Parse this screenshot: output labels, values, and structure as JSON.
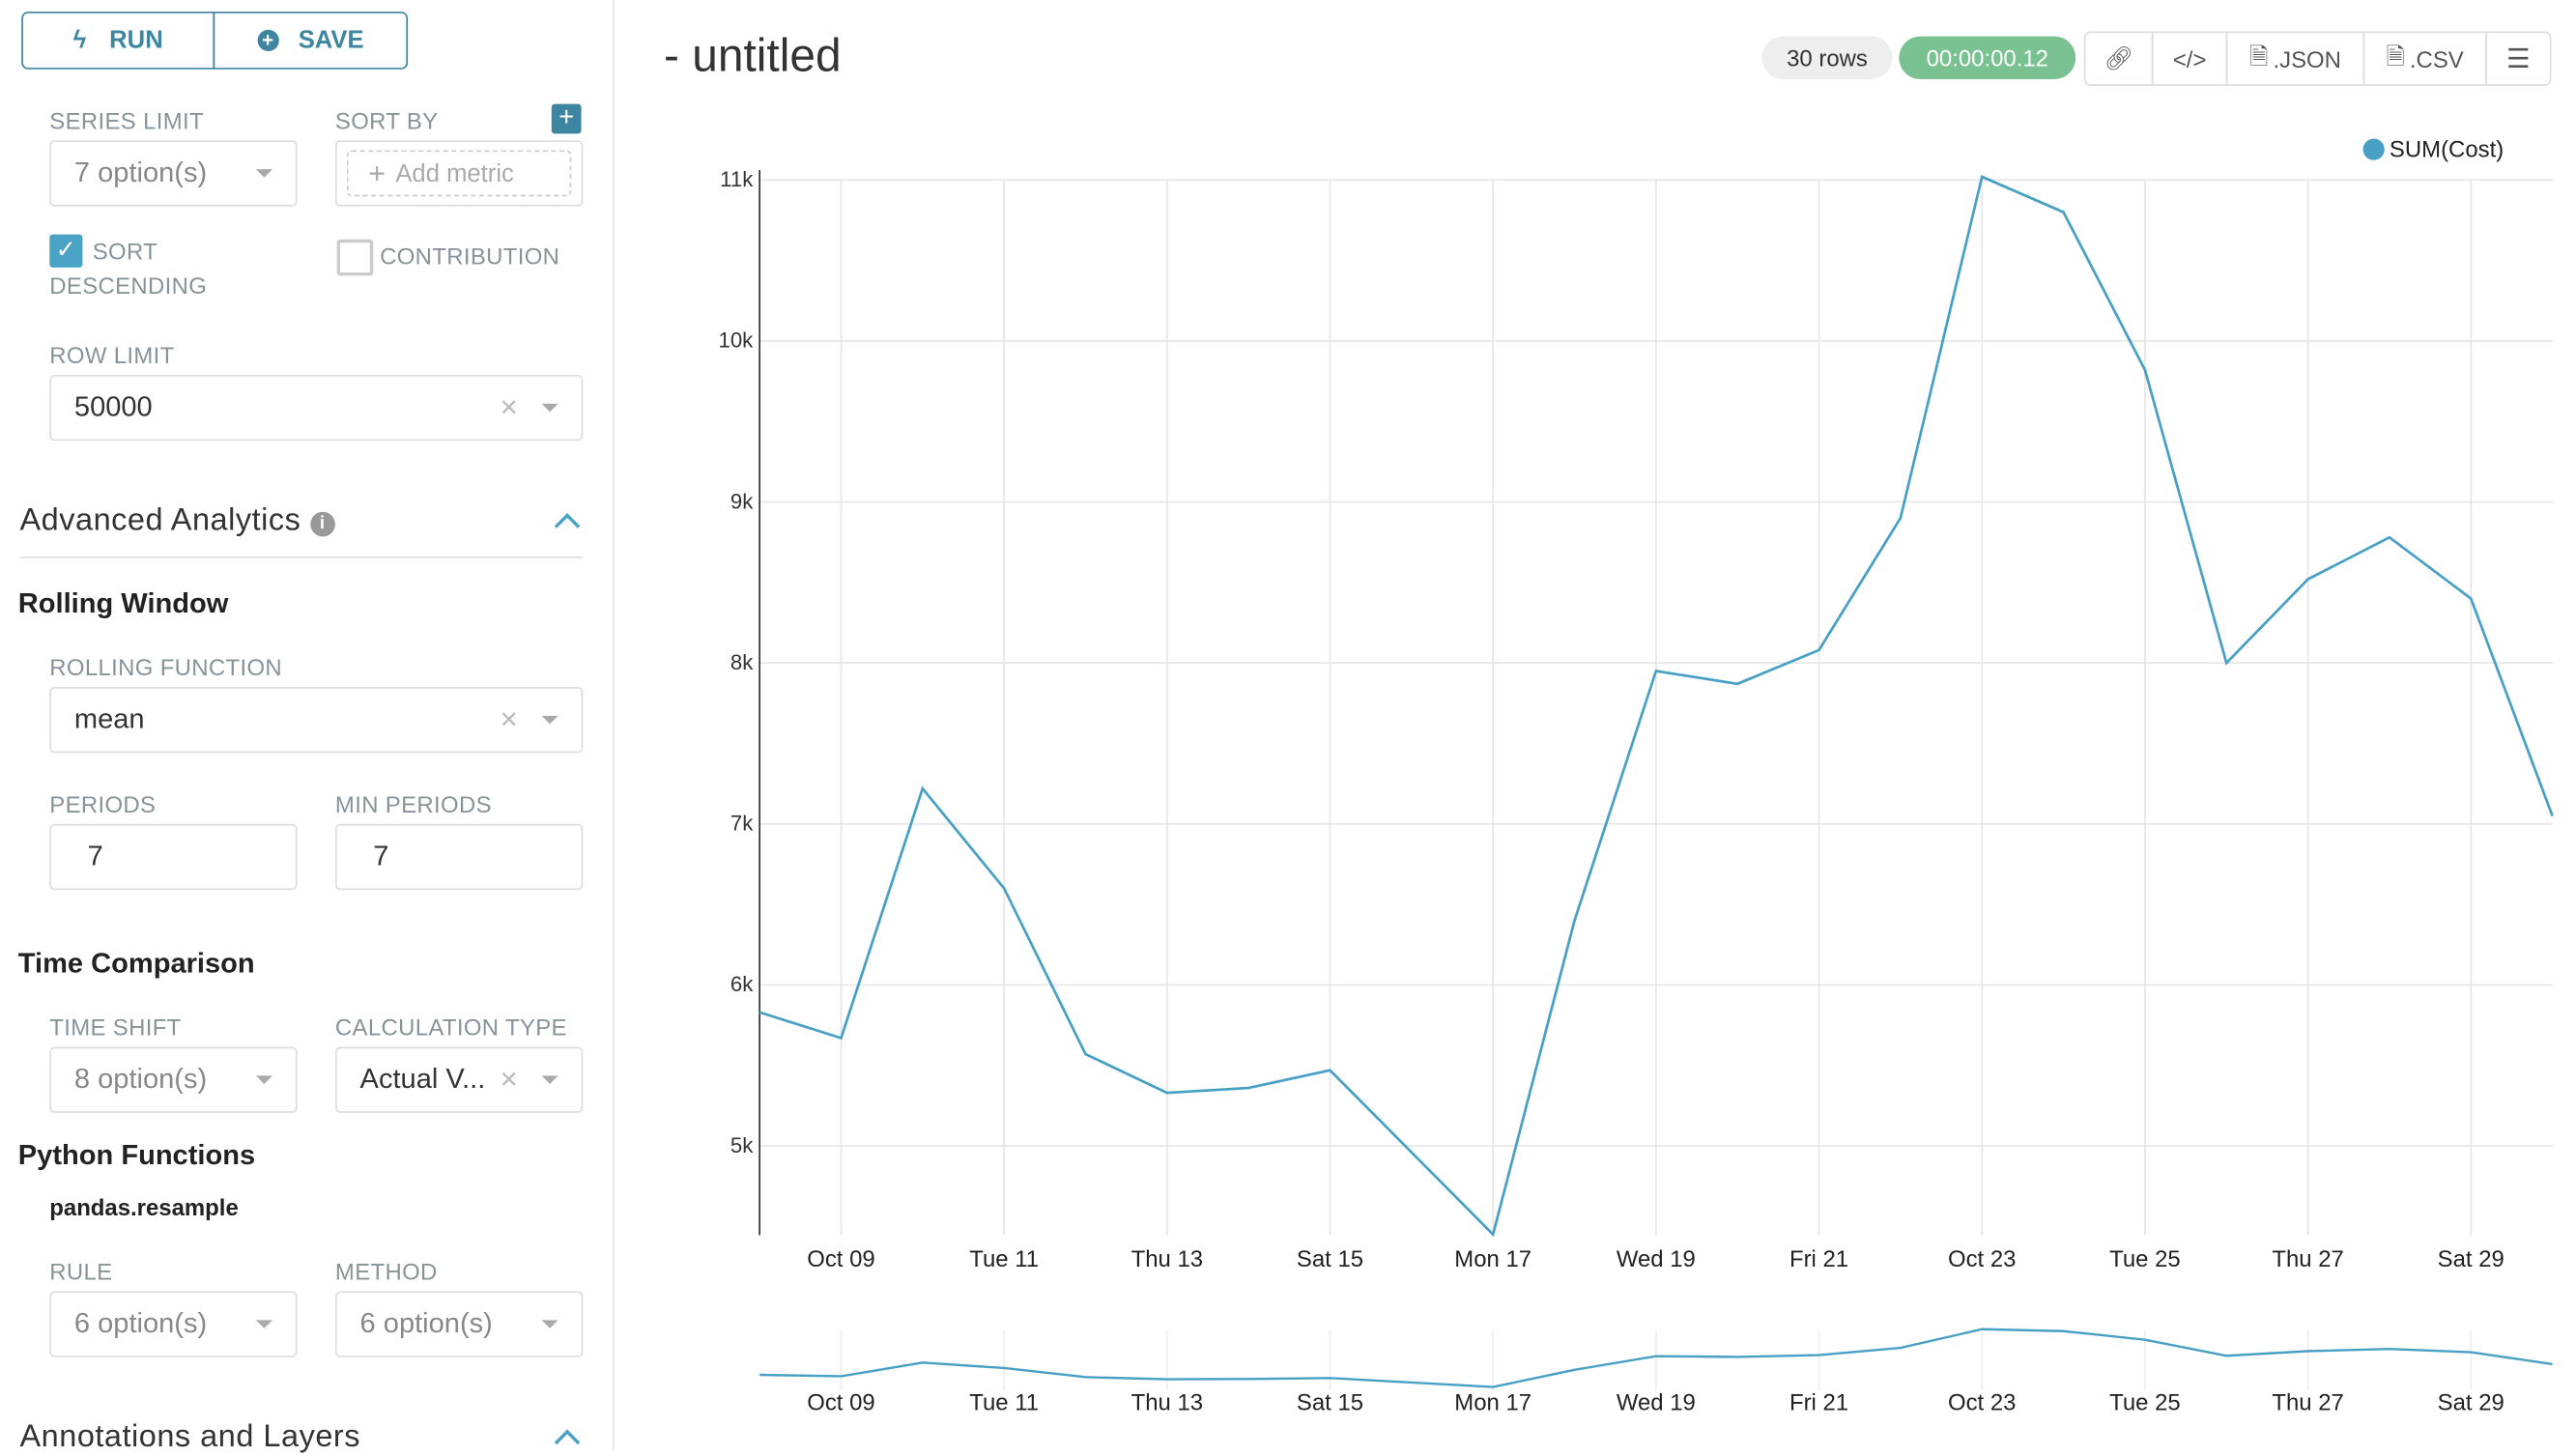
{
  "toolbar": {
    "run": "RUN",
    "save": "SAVE"
  },
  "controls": {
    "series_limit": {
      "label": "SERIES LIMIT",
      "value": "7 option(s)"
    },
    "sort_by": {
      "label": "SORT BY",
      "placeholder": "Add metric"
    },
    "sort_descending": {
      "label_1": "SORT",
      "label_2": "DESCENDING",
      "checked": true
    },
    "contribution": {
      "label": "CONTRIBUTION",
      "checked": false
    },
    "row_limit": {
      "label": "ROW LIMIT",
      "value": "50000"
    }
  },
  "advanced": {
    "title": "Advanced Analytics",
    "rolling_window": {
      "title": "Rolling Window",
      "function_label": "ROLLING FUNCTION",
      "function_value": "mean",
      "periods_label": "PERIODS",
      "periods_value": "7",
      "min_periods_label": "MIN PERIODS",
      "min_periods_value": "7"
    },
    "time_comparison": {
      "title": "Time Comparison",
      "time_shift_label": "TIME SHIFT",
      "time_shift_value": "8 option(s)",
      "calc_label": "CALCULATION TYPE",
      "calc_value": "Actual V..."
    },
    "python": {
      "title": "Python Functions",
      "subtitle": "pandas.resample",
      "rule_label": "RULE",
      "rule_value": "6 option(s)",
      "method_label": "METHOD",
      "method_value": "6 option(s)"
    }
  },
  "annotations": {
    "title": "Annotations and Layers"
  },
  "header": {
    "title": "- untitled",
    "rows": "30 rows",
    "timer": "00:00:00.12",
    "json": ".JSON",
    "csv": ".CSV"
  },
  "colors": {
    "accent": "#3d85a0",
    "series": "#48a0c4",
    "timer": "#79c190"
  },
  "chart_data": {
    "type": "line",
    "legend": [
      "SUM(Cost)"
    ],
    "legend_position": "top-right",
    "x": [
      "Oct 08",
      "Oct 09",
      "Oct 10",
      "Oct 11",
      "Oct 12",
      "Oct 13",
      "Oct 14",
      "Oct 15",
      "Oct 16",
      "Oct 17",
      "Oct 18",
      "Oct 19",
      "Oct 20",
      "Oct 21",
      "Oct 22",
      "Oct 23",
      "Oct 24",
      "Oct 25",
      "Oct 26",
      "Oct 27",
      "Oct 28",
      "Oct 29",
      "Oct 30"
    ],
    "series": [
      {
        "name": "SUM(Cost)",
        "values": [
          5830,
          5670,
          7220,
          6600,
          5570,
          5330,
          5360,
          5470,
          4960,
          4450,
          6400,
          7950,
          7870,
          8080,
          8900,
          11020,
          10800,
          9820,
          8000,
          8520,
          8780,
          8400,
          7050
        ]
      }
    ],
    "x_tick_labels": [
      "Oct 09",
      "Tue 11",
      "Thu 13",
      "Sat 15",
      "Mon 17",
      "Wed 19",
      "Fri 21",
      "Oct 23",
      "Tue 25",
      "Thu 27",
      "Sat 29"
    ],
    "y_tick_labels": [
      "5k",
      "6k",
      "7k",
      "8k",
      "9k",
      "10k",
      "11k"
    ],
    "y_ticks": [
      5000,
      6000,
      7000,
      8000,
      9000,
      10000,
      11000
    ],
    "ylim": [
      4450,
      11020
    ],
    "grid": true,
    "brush": true
  }
}
